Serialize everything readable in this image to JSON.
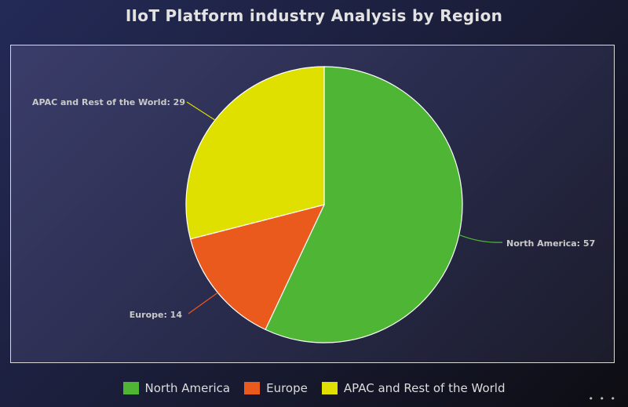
{
  "title": "IIoT Platform industry Analysis by Region",
  "chart_data": {
    "type": "pie",
    "title": "IIoT Platform industry Analysis by Region",
    "slices": [
      {
        "name": "North America",
        "value": 57,
        "label": "North America: 57",
        "color": "#4fb535"
      },
      {
        "name": "Europe",
        "value": 14,
        "label": "Europe: 14",
        "color": "#ea5a1c"
      },
      {
        "name": "APAC and Rest of the World",
        "value": 29,
        "label": "APAC and Rest of the World: 29",
        "color": "#dfdf00"
      }
    ],
    "legend_position": "bottom"
  },
  "legend": [
    {
      "label": "North America",
      "color": "#4fb535"
    },
    {
      "label": "Europe",
      "color": "#ea5a1c"
    },
    {
      "label": "APAC and Rest of the World",
      "color": "#dfdf00"
    }
  ]
}
